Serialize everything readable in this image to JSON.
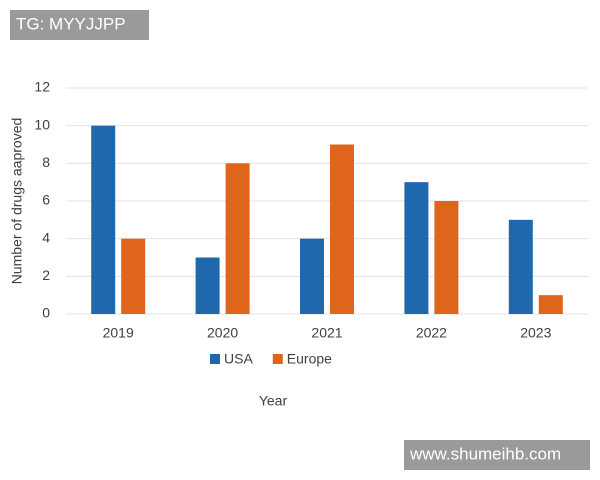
{
  "overlays": [
    "TG: MYYJJPP",
    "www.shumeihb.com"
  ],
  "chart_data": {
    "type": "bar",
    "x_label": "Year",
    "y_label": "Number of drugs aaproved",
    "categories": [
      "2019",
      "2020",
      "2021",
      "2022",
      "2023"
    ],
    "series": [
      {
        "name": "USA",
        "color": "#1f68ad",
        "values": [
          10,
          3,
          4,
          7,
          5
        ]
      },
      {
        "name": "Europe",
        "color": "#e0651c",
        "values": [
          4,
          8,
          9,
          6,
          1
        ]
      }
    ],
    "ylim": [
      0,
      12
    ],
    "yticks": [
      0,
      2,
      4,
      6,
      8,
      10,
      12
    ],
    "grid": true,
    "legend": "bottom"
  }
}
